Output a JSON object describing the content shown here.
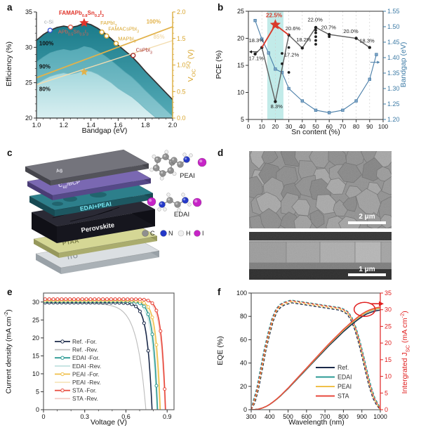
{
  "panels": {
    "a": {
      "letter": "a"
    },
    "b": {
      "letter": "b"
    },
    "c": {
      "letter": "c",
      "layers": [
        {
          "name": "Ag",
          "top": "#74747c",
          "side": "#53535a",
          "end": "#45454c",
          "text": "#dcdce2",
          "t": 7,
          "labelOn": "top",
          "fs": 7,
          "fu": 0.22
        },
        {
          "name": "C_{60}/BCP",
          "top": "#7a68b2",
          "side": "#564988",
          "end": "#493c75",
          "text": "#ddd6f2",
          "t": 7,
          "labelOn": "top",
          "fs": 8,
          "fu": 0.3
        },
        {
          "name": "EDAI+PEAI",
          "top": "#2d7f8b",
          "side": "#1d5761",
          "end": "#174a53",
          "text": "#79e7f2",
          "t": 9,
          "labelOn": "front",
          "fs": 8.5
        },
        {
          "name": "Perovskite",
          "top": "#2a2a35",
          "side": "#16161e",
          "end": "#101017",
          "text": "#f2f2f2",
          "t": 24,
          "labelOn": "front",
          "fs": 9.5
        },
        {
          "name": "PTAA",
          "top": "#d5d795",
          "side": "#aaac6e",
          "end": "#96985c",
          "text": "#7f814b",
          "t": 7,
          "labelOn": "top",
          "fs": 9,
          "fu": 0.25
        },
        {
          "name": "ITO",
          "top": "#dbdfe2",
          "side": "#aab1b6",
          "end": "#99a1a7",
          "text": "#8e969b",
          "t": 9,
          "labelOn": "top",
          "fs": 9,
          "fu": 0.25
        }
      ],
      "molecules": {
        "peai": "PEAI",
        "edai": "EDAI"
      },
      "atom_legend": [
        {
          "symbol": "C",
          "color": "#8f8f8f"
        },
        {
          "symbol": "N",
          "color": "#2438c8"
        },
        {
          "symbol": "H",
          "color": "#f0f0f0"
        },
        {
          "symbol": "I",
          "color": "#c724c7"
        }
      ]
    },
    "d": {
      "letter": "d",
      "scalebar_top": "2 μm",
      "scalebar_bottom": "1 μm"
    },
    "e": {
      "letter": "e"
    },
    "f": {
      "letter": "f"
    }
  },
  "chart_data": [
    {
      "id": "a",
      "type": "area+line+scatter",
      "xlabel": "Bandgap (eV)",
      "ylabel": "Efficiency (%)",
      "y2label": "V_{OC}^{SQ} (V)",
      "xlim": [
        1.0,
        2.0
      ],
      "ylim": [
        20,
        35
      ],
      "y2lim": [
        0.0,
        2.0
      ],
      "xticks": [
        1.0,
        1.2,
        1.4,
        1.6,
        1.8,
        2.0
      ],
      "yticks": [
        20,
        25,
        30,
        35
      ],
      "y2ticks": [
        0.0,
        0.5,
        1.0,
        1.5,
        2.0
      ],
      "sq_x": [
        1.0,
        1.05,
        1.1,
        1.15,
        1.2,
        1.25,
        1.3,
        1.35,
        1.4,
        1.45,
        1.5,
        1.55,
        1.6,
        1.65,
        1.7,
        1.75,
        1.8,
        1.85,
        1.9,
        1.95,
        2.0
      ],
      "sq_curves": [
        {
          "label": "100%",
          "y": [
            31.0,
            31.8,
            32.4,
            32.8,
            33.0,
            32.8,
            33.0,
            33.45,
            33.2,
            32.7,
            32.0,
            31.2,
            30.3,
            29.5,
            28.7,
            27.7,
            26.6,
            25.6,
            24.6,
            23.6,
            22.6
          ]
        },
        {
          "label": "90%",
          "y": [
            27.9,
            28.6,
            29.2,
            29.5,
            29.7,
            29.5,
            29.7,
            30.1,
            29.9,
            29.4,
            28.8,
            28.1,
            27.3,
            26.5,
            25.8,
            24.9,
            23.9,
            23.0,
            22.1,
            21.2,
            20.3
          ]
        },
        {
          "label": "80%",
          "y": [
            24.8,
            25.4,
            25.9,
            26.2,
            26.4,
            26.2,
            26.4,
            26.75,
            26.6,
            26.2,
            25.6,
            25.0,
            24.2,
            23.6,
            23.0,
            22.2,
            21.3,
            20.5,
            19.7,
            18.9,
            18.1
          ]
        }
      ],
      "region_labels": [
        {
          "text": "100%",
          "x": 1.02,
          "y": 30.3
        },
        {
          "text": "90%",
          "x": 1.02,
          "y": 27.0
        },
        {
          "text": "80%",
          "x": 1.02,
          "y": 23.8
        }
      ],
      "voc_lines": [
        {
          "label": "100%",
          "x": [
            1.0,
            2.0
          ],
          "v": [
            0.76,
            1.72
          ],
          "color": "#e2b24a",
          "w": 1.8,
          "lx": 1.86,
          "lv": 1.78
        },
        {
          "label": "85%",
          "x": [
            1.0,
            2.0
          ],
          "v": [
            0.63,
            1.46
          ],
          "color": "#f3ddb0",
          "w": 1.4,
          "lx": 1.9,
          "lv": 1.5
        }
      ],
      "voc_star": {
        "x": 1.35,
        "v": 0.87,
        "color": "#e2b24a"
      },
      "points": [
        {
          "label": "c-Si",
          "x": 1.1,
          "y": 32.4,
          "marker": "circle",
          "color": "#3a55d6",
          "label_color": "#9aa3a8",
          "lx": 1.09,
          "ly": 33.35
        },
        {
          "label": "APb_{0.5}Sn_{0.5}I_{3}",
          "x": 1.25,
          "y": 32.85,
          "marker": "circle",
          "color": "#e0604e",
          "label_color": "#e0604e",
          "lx": 1.27,
          "ly": 31.95
        },
        {
          "label": "FAMAPb_{0.8}Sn_{0.2}I_{3}",
          "x": 1.35,
          "y": 33.45,
          "marker": "star",
          "color": "#e0352b",
          "label_color": "#e0352b",
          "lx": 1.33,
          "ly": 34.6,
          "bold": true
        },
        {
          "label": "FAPbI_{3}",
          "x": 1.48,
          "y": 32.15,
          "marker": "circle",
          "color": "#d9a62e",
          "label_color": "#d9a62e",
          "lx": 1.53,
          "ly": 33.2
        },
        {
          "label": "FAMACsPbI_{3}",
          "x": 1.515,
          "y": 31.6,
          "marker": "circle",
          "color": "#d9a62e",
          "label_color": "#d9a62e",
          "lx": 1.64,
          "ly": 32.35
        },
        {
          "label": "MAPbI_{3}",
          "x": 1.585,
          "y": 30.55,
          "marker": "circle",
          "color": "#d9a62e",
          "label_color": "#d9a62e",
          "lx": 1.665,
          "ly": 31.0
        },
        {
          "label": "CsPbI_{3}",
          "x": 1.71,
          "y": 28.85,
          "marker": "circle",
          "color": "#a8312c",
          "label_color": "#a8312c",
          "lx": 1.79,
          "ly": 29.4
        }
      ]
    },
    {
      "id": "b",
      "type": "line+scatter",
      "xlabel": "Sn content (%)",
      "ylabel": "PCE (%)",
      "y2label": "Bandgap (eV)",
      "xlim": [
        0,
        100
      ],
      "ylim": [
        5,
        25
      ],
      "y2lim": [
        1.2,
        1.55
      ],
      "xticks": [
        0,
        10,
        20,
        30,
        40,
        50,
        60,
        70,
        80,
        90,
        100
      ],
      "yticks": [
        5,
        10,
        15,
        20,
        25
      ],
      "y2ticks": [
        1.2,
        1.25,
        1.3,
        1.35,
        1.4,
        1.45,
        1.5,
        1.55
      ],
      "highlight_band": {
        "x": [
          14,
          26
        ],
        "color": "#aee4e1"
      },
      "pce_line": {
        "color": "#5f5f5f",
        "x": [
          5,
          10,
          20,
          30,
          40,
          50,
          60,
          80,
          90
        ],
        "y": [
          17.1,
          18.3,
          8.3,
          20.6,
          18.2,
          22.0,
          20.7,
          20.0,
          18.3
        ]
      },
      "pce_scatter": [
        [
          25,
          15.3
        ],
        [
          25,
          17.2
        ],
        [
          30,
          18.3
        ],
        [
          30,
          13.7
        ],
        [
          50,
          18.9
        ],
        [
          50,
          19.6
        ],
        [
          50,
          20.3
        ],
        [
          50,
          21.0
        ],
        [
          50,
          21.5
        ],
        [
          60,
          20.3
        ]
      ],
      "champion": {
        "color": "#d93a2b",
        "x": [
          10,
          20,
          30
        ],
        "y": [
          18.3,
          22.5,
          20.6
        ],
        "star_x": 20,
        "star_y": 22.5
      },
      "labels": [
        {
          "text": "17.1%",
          "x": 0.3,
          "y": 16.0
        },
        {
          "text": "18.3%",
          "x": 0.3,
          "y": 19.3
        },
        {
          "text": "8.3%",
          "x": 16.5,
          "y": 7.1
        },
        {
          "text": "22.5%",
          "x": 13.0,
          "y": 23.9,
          "color": "#d93a2b",
          "bold": true
        },
        {
          "text": "20.6%",
          "x": 27.5,
          "y": 21.5
        },
        {
          "text": "17.2%",
          "x": 26.5,
          "y": 16.6
        },
        {
          "text": "18.2%",
          "x": 35.5,
          "y": 19.4
        },
        {
          "text": "22.0%",
          "x": 44.0,
          "y": 23.1
        },
        {
          "text": "20.7%",
          "x": 54.0,
          "y": 21.7
        },
        {
          "text": "20.0%",
          "x": 70.5,
          "y": 21.0
        },
        {
          "text": "18.3%",
          "x": 82.5,
          "y": 19.2
        }
      ],
      "bandgap_line": {
        "color": "#4a7ea8",
        "x": [
          5,
          10,
          15,
          20,
          25,
          30,
          40,
          50,
          60,
          70,
          80,
          90,
          95
        ],
        "y2": [
          1.52,
          1.46,
          1.415,
          1.363,
          1.352,
          1.3,
          1.26,
          1.23,
          1.222,
          1.23,
          1.26,
          1.33,
          1.41
        ]
      }
    },
    {
      "id": "e",
      "type": "line",
      "xlabel": "Voltage (V)",
      "ylabel": "Current density (mA cm^{-2})",
      "xlim": [
        0,
        0.95
      ],
      "ylim": [
        0,
        32.5
      ],
      "xticks": [
        0,
        0.3,
        0.6,
        0.9
      ],
      "yticks": [
        0,
        5,
        10,
        15,
        20,
        25,
        30
      ],
      "series": [
        {
          "name": "Ref. -For.",
          "jsc": 29.8,
          "voc": 0.79,
          "knee": 0.035,
          "color": "#1b2a4a",
          "marker": true
        },
        {
          "name": "Ref. -Rev.",
          "jsc": 29.6,
          "voc": 0.745,
          "knee": 0.065,
          "color": "#bcbcbc"
        },
        {
          "name": "EDAI -For.",
          "jsc": 30.2,
          "voc": 0.83,
          "knee": 0.032,
          "color": "#2b9a94",
          "marker": true
        },
        {
          "name": "EDAI -Rev.",
          "jsc": 30.2,
          "voc": 0.825,
          "knee": 0.036,
          "color": "#c2e2e0"
        },
        {
          "name": "PEAI -For.",
          "jsc": 30.4,
          "voc": 0.85,
          "knee": 0.031,
          "color": "#f0c04a",
          "marker": true
        },
        {
          "name": "PEAI -Rev.",
          "jsc": 30.4,
          "voc": 0.845,
          "knee": 0.035,
          "color": "#f6e6bb"
        },
        {
          "name": "STA -For.",
          "jsc": 30.8,
          "voc": 0.888,
          "knee": 0.029,
          "color": "#e8483c",
          "marker": true
        },
        {
          "name": "STA -Rev.",
          "jsc": 30.8,
          "voc": 0.884,
          "knee": 0.032,
          "color": "#f6cfc9"
        }
      ]
    },
    {
      "id": "f",
      "type": "line",
      "xlabel": "Wavelength (nm)",
      "ylabel": "EQE (%)",
      "y2label": "Intergrated J_{SC} (mA cm^{-2})",
      "xlim": [
        300,
        1000
      ],
      "ylim": [
        0,
        100
      ],
      "y2lim": [
        0,
        35
      ],
      "xticks": [
        300,
        400,
        500,
        600,
        700,
        800,
        900,
        1000
      ],
      "yticks": [
        0,
        20,
        40,
        60,
        80,
        100
      ],
      "y2ticks": [
        0,
        5,
        10,
        15,
        20,
        25,
        30,
        35
      ],
      "x": [
        300,
        320,
        340,
        360,
        380,
        400,
        420,
        440,
        460,
        480,
        500,
        520,
        540,
        560,
        580,
        600,
        620,
        640,
        660,
        680,
        700,
        720,
        740,
        760,
        780,
        800,
        820,
        840,
        860,
        880,
        900,
        920,
        940,
        960,
        980,
        1000
      ],
      "eqe_base": [
        0,
        6,
        18,
        35,
        52,
        66,
        78,
        86,
        90,
        92,
        93,
        94,
        93.5,
        93,
        92.5,
        92,
        91.5,
        91,
        90.5,
        90,
        89.5,
        89,
        88.5,
        88,
        87.5,
        86,
        84,
        79,
        71,
        60,
        47,
        33,
        20,
        10,
        4,
        0
      ],
      "jsc_base": [
        0,
        0.05,
        0.2,
        0.5,
        0.95,
        1.6,
        2.4,
        3.3,
        4.3,
        5.4,
        6.5,
        7.7,
        8.9,
        10.1,
        11.3,
        12.5,
        13.7,
        14.9,
        16.1,
        17.3,
        18.5,
        19.7,
        20.8,
        21.9,
        23.0,
        24.1,
        25.1,
        26.1,
        27.0,
        27.9,
        28.7,
        29.4,
        29.9,
        30.3,
        30.6,
        30.8
      ],
      "series": [
        {
          "name": "Ref.",
          "color": "#1b2a4a",
          "widen": 0.0,
          "scale": 0.975,
          "jsc": 29.9
        },
        {
          "name": "EDAI",
          "color": "#2b9a94",
          "widen": 0.035,
          "scale": 1.0,
          "jsc": 30.4
        },
        {
          "name": "PEAI",
          "color": "#f0c04a",
          "widen": 0.012,
          "scale": 0.985,
          "jsc": 30.5
        },
        {
          "name": "STA",
          "color": "#e8483c",
          "widen": 0.022,
          "scale": 0.995,
          "jsc": 30.8
        }
      ],
      "annotation": {
        "ellipse_x": 915,
        "ellipse_jsc": 30.1,
        "color": "#e02020"
      }
    }
  ]
}
